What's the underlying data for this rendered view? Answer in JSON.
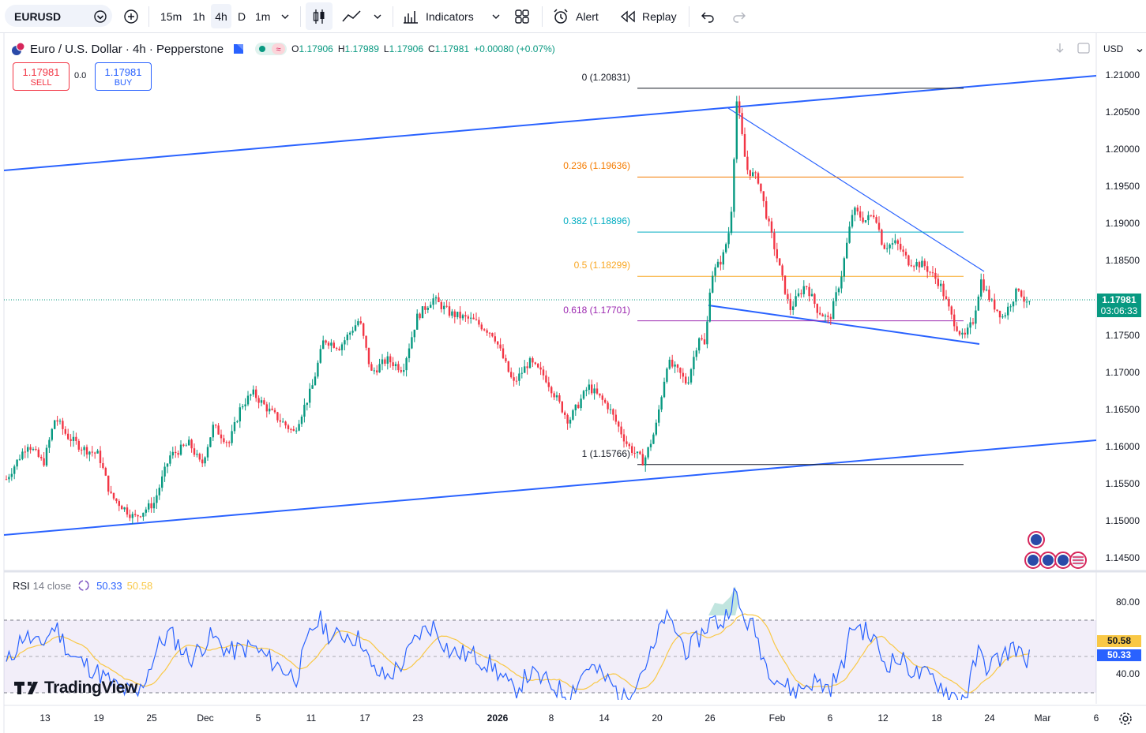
{
  "toolbar": {
    "symbol": "EURUSD",
    "intervals": [
      "15m",
      "1h",
      "4h",
      "D",
      "1m"
    ],
    "active_interval": "4h",
    "indicators_label": "Indicators",
    "alert_label": "Alert",
    "replay_label": "Replay"
  },
  "legend": {
    "title": "Euro / U.S. Dollar · 4h · Pepperstone",
    "open_label": "O",
    "open": "1.17906",
    "high_label": "H",
    "high": "1.17989",
    "low_label": "L",
    "low": "1.17906",
    "close_label": "C",
    "close": "1.17981",
    "change": "+0.00080 (+0.07%)"
  },
  "trade": {
    "sell_price": "1.17981",
    "sell_label": "SELL",
    "spread": "0.0",
    "buy_price": "1.17981",
    "buy_label": "BUY"
  },
  "currency": "USD",
  "price_axis": {
    "ticks": [
      "1.21000",
      "1.20500",
      "1.20000",
      "1.19500",
      "1.19000",
      "1.18500",
      "1.17500",
      "1.17000",
      "1.16500",
      "1.16000",
      "1.15500",
      "1.15000",
      "1.14500"
    ],
    "current_price": "1.17981",
    "countdown": "03:06:33"
  },
  "fib_levels": [
    {
      "label": "0 (1.20831)",
      "color": "#131722"
    },
    {
      "label": "0.236 (1.19636)",
      "color": "#f57c00"
    },
    {
      "label": "0.382 (1.18896)",
      "color": "#00acc1"
    },
    {
      "label": "0.5 (1.18299)",
      "color": "#f9a825"
    },
    {
      "label": "0.618 (1.17701)",
      "color": "#9c27b0"
    },
    {
      "label": "1 (1.15766)",
      "color": "#131722"
    }
  ],
  "rsi": {
    "name": "RSI",
    "params": "14 close",
    "value": "50.33",
    "ma_value": "50.58",
    "axis_ticks": [
      "80.00",
      "40.00"
    ]
  },
  "time_axis": [
    "13",
    "19",
    "25",
    "Dec",
    "5",
    "11",
    "17",
    "23",
    "2026",
    "8",
    "14",
    "20",
    "26",
    "Feb",
    "6",
    "12",
    "18",
    "24",
    "Mar",
    "6"
  ],
  "brand": "TradingView",
  "colors": {
    "up": "#089981",
    "down": "#f23645",
    "trendline": "#2962ff",
    "rsi_line": "#2962ff",
    "rsi_ma": "#f9c846",
    "rsi_band": "#7e57c2"
  }
}
